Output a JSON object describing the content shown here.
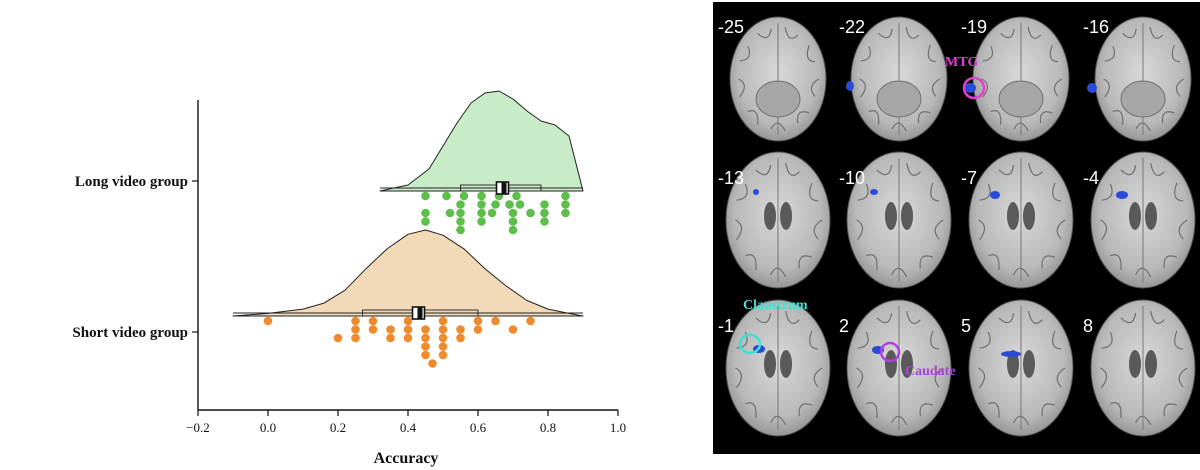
{
  "chart_data": {
    "type": "raincloud",
    "xlabel": "Accuracy",
    "xlim": [
      -0.2,
      1.0
    ],
    "xticks": [
      "−0.2",
      "0.0",
      "0.2",
      "0.4",
      "0.6",
      "0.8",
      "1.0"
    ],
    "xtick_values": [
      -0.2,
      0.0,
      0.2,
      0.4,
      0.6,
      0.8,
      1.0
    ],
    "series": [
      {
        "name": "Long video group",
        "color": "#5cbf4a",
        "fill": "#c8ecc6",
        "mean": 0.67,
        "box": [
          0.55,
          0.78
        ],
        "whisker": [
          0.32,
          0.9
        ],
        "density_x": [
          0.32,
          0.4,
          0.46,
          0.5,
          0.54,
          0.58,
          0.62,
          0.66,
          0.7,
          0.74,
          0.78,
          0.82,
          0.86,
          0.9
        ],
        "density_y": [
          0.0,
          0.06,
          0.22,
          0.45,
          0.68,
          0.88,
          0.98,
          1.0,
          0.92,
          0.8,
          0.7,
          0.66,
          0.55,
          0.0
        ],
        "points": [
          [
            0.45,
            0
          ],
          [
            0.51,
            0
          ],
          [
            0.56,
            0
          ],
          [
            0.61,
            0
          ],
          [
            0.66,
            0
          ],
          [
            0.71,
            0
          ],
          [
            0.85,
            0
          ],
          [
            0.55,
            1
          ],
          [
            0.61,
            1
          ],
          [
            0.65,
            1
          ],
          [
            0.69,
            1
          ],
          [
            0.72,
            1
          ],
          [
            0.79,
            1
          ],
          [
            0.85,
            1
          ],
          [
            0.45,
            2
          ],
          [
            0.52,
            2
          ],
          [
            0.55,
            2
          ],
          [
            0.61,
            2
          ],
          [
            0.64,
            2
          ],
          [
            0.7,
            2
          ],
          [
            0.75,
            2
          ],
          [
            0.79,
            2
          ],
          [
            0.85,
            2
          ],
          [
            0.45,
            3
          ],
          [
            0.55,
            3
          ],
          [
            0.61,
            3
          ],
          [
            0.7,
            3
          ],
          [
            0.79,
            3
          ],
          [
            0.55,
            4
          ],
          [
            0.7,
            4
          ]
        ]
      },
      {
        "name": "Short video group",
        "color": "#ef8a2e",
        "fill": "#f2d9b8",
        "mean": 0.43,
        "box": [
          0.27,
          0.6
        ],
        "whisker": [
          -0.1,
          0.9
        ],
        "density_x": [
          -0.1,
          0.0,
          0.1,
          0.16,
          0.22,
          0.28,
          0.34,
          0.4,
          0.45,
          0.5,
          0.56,
          0.62,
          0.68,
          0.74,
          0.8,
          0.86,
          0.9
        ],
        "density_y": [
          0.0,
          0.03,
          0.08,
          0.15,
          0.3,
          0.55,
          0.78,
          0.95,
          1.0,
          0.94,
          0.78,
          0.55,
          0.35,
          0.18,
          0.08,
          0.03,
          0.0
        ],
        "points": [
          [
            0.0,
            0
          ],
          [
            0.25,
            0
          ],
          [
            0.3,
            0
          ],
          [
            0.4,
            0
          ],
          [
            0.5,
            0
          ],
          [
            0.6,
            0
          ],
          [
            0.65,
            0
          ],
          [
            0.75,
            0
          ],
          [
            0.25,
            1
          ],
          [
            0.3,
            1
          ],
          [
            0.35,
            1
          ],
          [
            0.4,
            1
          ],
          [
            0.45,
            1
          ],
          [
            0.5,
            1
          ],
          [
            0.55,
            1
          ],
          [
            0.6,
            1
          ],
          [
            0.7,
            1
          ],
          [
            0.2,
            2
          ],
          [
            0.25,
            2
          ],
          [
            0.35,
            2
          ],
          [
            0.4,
            2
          ],
          [
            0.45,
            2
          ],
          [
            0.5,
            2
          ],
          [
            0.55,
            2
          ],
          [
            0.45,
            3
          ],
          [
            0.5,
            3
          ],
          [
            0.45,
            4
          ],
          [
            0.5,
            4
          ],
          [
            0.47,
            5
          ]
        ]
      }
    ]
  },
  "brain_panel": {
    "slices": [
      "-25",
      "-22",
      "-19",
      "-16",
      "-13",
      "-10",
      "-7",
      "-4",
      "-1",
      "2",
      "5",
      "8"
    ],
    "labels": {
      "mtg": {
        "text": "MTG",
        "color": "#e040d0"
      },
      "claustrum": {
        "text": "Claustrum",
        "color": "#40e0d8"
      },
      "caudate": {
        "text": "Caudate",
        "color": "#b040e0"
      }
    },
    "activation_color": "#2a4bd8",
    "slice_label_color": "#ffffff"
  }
}
